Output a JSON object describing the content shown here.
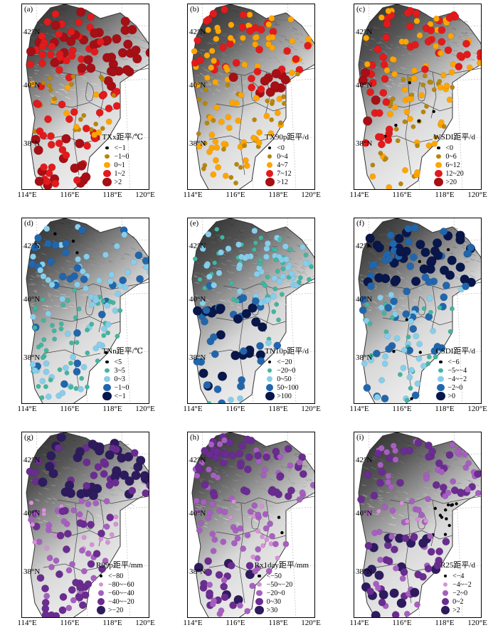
{
  "lat_labels": [
    "42°N",
    "40°N",
    "38°N"
  ],
  "lon_labels": [
    "114°E",
    "116°E",
    "118°E",
    "120°E"
  ],
  "panels": [
    {
      "tag": "(a)",
      "title": "TXx距平/℃",
      "classes": [
        "<−1",
        "−1~0",
        "0~1",
        "1~2",
        ">2"
      ],
      "colors": [
        "#000000",
        "#b8860b",
        "#ffa500",
        "#e31a1c",
        "#a50f15"
      ]
    },
    {
      "tag": "(b)",
      "title": "TX90p距平/d",
      "classes": [
        "<0",
        "0~4",
        "4~7",
        "7~12",
        ">12"
      ],
      "colors": [
        "#000000",
        "#b8860b",
        "#ffa500",
        "#e31a1c",
        "#a50f15"
      ]
    },
    {
      "tag": "(c)",
      "title": "WSDI距平/d",
      "classes": [
        "<0",
        "0~6",
        "6~12",
        "12~20",
        ">20"
      ],
      "colors": [
        "#000000",
        "#b8860b",
        "#ffa500",
        "#e31a1c",
        "#a50f15"
      ]
    },
    {
      "tag": "(d)",
      "title": "TNn距平/℃",
      "classes": [
        "<5",
        "3~5",
        "0~3",
        "−1~0",
        "<−1"
      ],
      "colors": [
        "#000000",
        "#41b6a0",
        "#87ceeb",
        "#2166ac",
        "#08164a"
      ]
    },
    {
      "tag": "(e)",
      "title": "TN10p距平/d",
      "classes": [
        "<−20",
        "−20~0",
        "0~50",
        "50~100",
        ">100"
      ],
      "colors": [
        "#000000",
        "#41b6a0",
        "#87ceeb",
        "#2166ac",
        "#08164a"
      ]
    },
    {
      "tag": "(f)",
      "title": "CSDI距平/d",
      "classes": [
        "<−6",
        "−5~−4",
        "−4~−2",
        "−2~0",
        ">0"
      ],
      "colors": [
        "#000000",
        "#41b6a0",
        "#87ceeb",
        "#2166ac",
        "#08164a"
      ]
    },
    {
      "tag": "(g)",
      "title": "R99p距平/mm",
      "classes": [
        "<−80",
        "−80~−60",
        "−60~−40",
        "−40~−20",
        ">−20"
      ],
      "colors": [
        "#000000",
        "#d98fd9",
        "#a65fc0",
        "#6a2c91",
        "#2d1b5e"
      ]
    },
    {
      "tag": "(h)",
      "title": "Rx1day距平/mm",
      "classes": [
        "<−50",
        "−50~−20",
        "−20~0",
        "0~30",
        ">30"
      ],
      "colors": [
        "#000000",
        "#d98fd9",
        "#a65fc0",
        "#6a2c91",
        "#2d1b5e"
      ]
    },
    {
      "tag": "(i)",
      "title": "R25距平/d",
      "classes": [
        "<−4",
        "−4~−2",
        "−2~0",
        "0~2",
        ">2"
      ],
      "colors": [
        "#000000",
        "#d98fd9",
        "#a65fc0",
        "#6a2c91",
        "#2d1b5e"
      ]
    }
  ]
}
